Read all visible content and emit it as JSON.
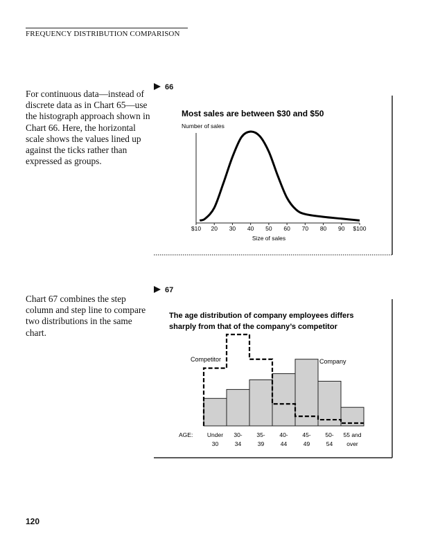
{
  "header": "FREQUENCY DISTRIBUTION COMPARISON",
  "paragraph1": "For continuous data—instead of discrete data as in Chart 65—use the histograph approach shown in Chart 66. Here, the horizontal scale shows the values lined up against the ticks rather than expressed as groups.",
  "paragraph2": "Chart 67 combines the step column and step line to compare two distributions in the same chart.",
  "page_number": "120",
  "chart_data": [
    {
      "number": "66",
      "type": "line",
      "title": "Most sales are between $30 and $50",
      "ylabel": "Number of sales",
      "xlabel": "Size of sales",
      "xticks": [
        "$10",
        "20",
        "30",
        "40",
        "50",
        "60",
        "70",
        "80",
        "90",
        "$100"
      ],
      "xlim": [
        10,
        100
      ],
      "ylim": [
        0,
        100
      ],
      "x": [
        12,
        15,
        20,
        25,
        30,
        35,
        40,
        45,
        50,
        55,
        60,
        65,
        70,
        80,
        90,
        100
      ],
      "y": [
        2,
        4,
        16,
        43,
        72,
        94,
        100,
        95,
        78,
        51,
        27,
        14,
        9,
        6,
        4,
        2
      ]
    },
    {
      "number": "67",
      "type": "bar",
      "title_line1": "The age distribution of company employees differs",
      "title_line2": "sharply from that of the company’s competitor",
      "axis_label": "AGE:",
      "categories": [
        [
          "Under",
          "30"
        ],
        [
          "30-",
          "34"
        ],
        [
          "35-",
          "39"
        ],
        [
          "40-",
          "44"
        ],
        [
          "45-",
          "49"
        ],
        [
          "50-",
          "54"
        ],
        [
          "55 and",
          "over"
        ]
      ],
      "ylim": [
        0,
        140
      ],
      "series": [
        {
          "name": "Company",
          "style": "gray-columns",
          "values": [
            40,
            53,
            67,
            76,
            97,
            65,
            27
          ]
        },
        {
          "name": "Competitor",
          "style": "dashed-step-line",
          "values": [
            84,
            133,
            97,
            32,
            14,
            9,
            4
          ]
        }
      ]
    }
  ]
}
